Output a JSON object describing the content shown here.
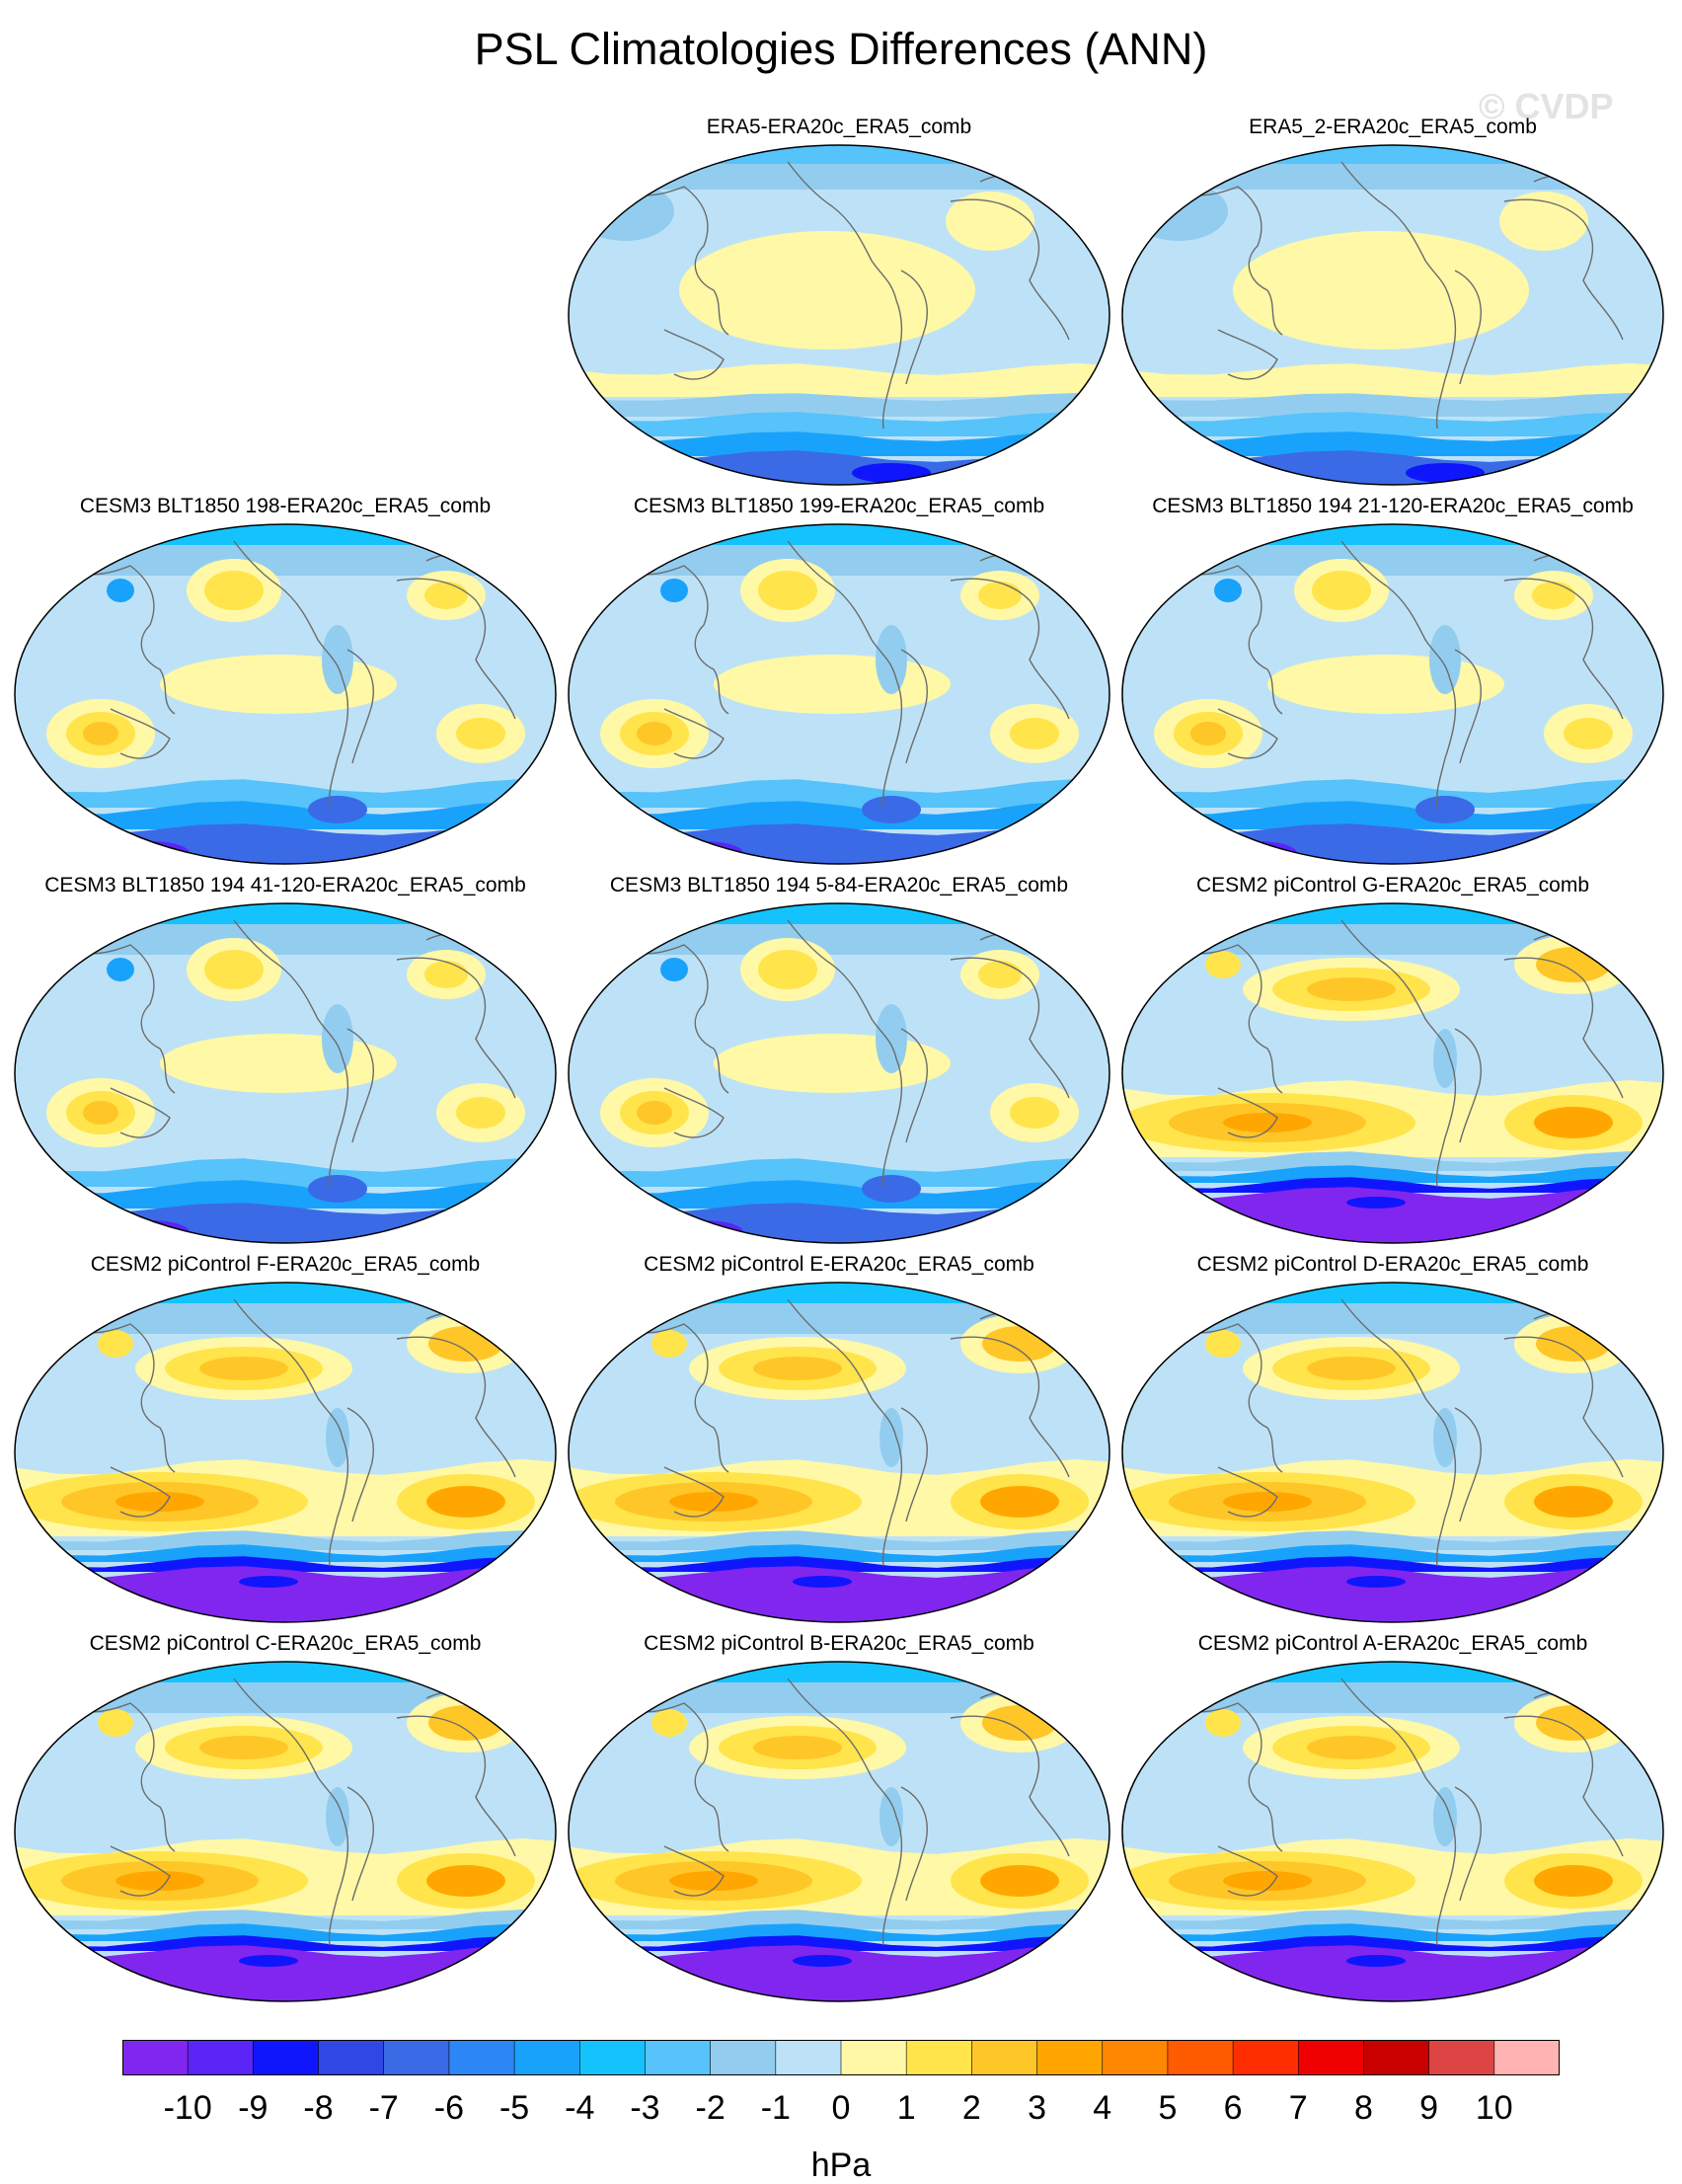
{
  "title": "PSL Climatologies Differences (ANN)",
  "watermark": "© CVDP",
  "units": "hPa",
  "colorbar": {
    "labels": [
      "-10",
      "-9",
      "-8",
      "-7",
      "-6",
      "-5",
      "-4",
      "-3",
      "-2",
      "-1",
      "0",
      "1",
      "2",
      "3",
      "4",
      "5",
      "6",
      "7",
      "8",
      "9",
      "10"
    ],
    "colors": [
      "#8126ef",
      "#5a25f6",
      "#1016fb",
      "#3046e5",
      "#3b6ae6",
      "#2c86f5",
      "#19a2fb",
      "#14c3fd",
      "#56c3fa",
      "#92cdf0",
      "#bde2f7",
      "#fff8a6",
      "#ffe44b",
      "#ffc628",
      "#ffa700",
      "#ff8600",
      "#ff5b00",
      "#ff2e00",
      "#ef0000",
      "#c90000",
      "#dd4545",
      "#ffb3b3"
    ]
  },
  "panels": [
    {
      "title": "ERA5-ERA20c_ERA5_comb",
      "type": "obs"
    },
    {
      "title": "ERA5_2-ERA20c_ERA5_comb",
      "type": "obs"
    },
    {
      "title": "CESM3 BLT1850 198-ERA20c_ERA5_comb",
      "type": "cesm3"
    },
    {
      "title": "CESM3 BLT1850 199-ERA20c_ERA5_comb",
      "type": "cesm3"
    },
    {
      "title": "CESM3 BLT1850 194 21-120-ERA20c_ERA5_comb",
      "type": "cesm3"
    },
    {
      "title": "CESM3 BLT1850 194 41-120-ERA20c_ERA5_comb",
      "type": "cesm3"
    },
    {
      "title": "CESM3 BLT1850 194 5-84-ERA20c_ERA5_comb",
      "type": "cesm3"
    },
    {
      "title": "CESM2 piControl G-ERA20c_ERA5_comb",
      "type": "cesm2"
    },
    {
      "title": "CESM2 piControl F-ERA20c_ERA5_comb",
      "type": "cesm2"
    },
    {
      "title": "CESM2 piControl E-ERA20c_ERA5_comb",
      "type": "cesm2"
    },
    {
      "title": "CESM2 piControl D-ERA20c_ERA5_comb",
      "type": "cesm2"
    },
    {
      "title": "CESM2 piControl C-ERA20c_ERA5_comb",
      "type": "cesm2"
    },
    {
      "title": "CESM2 piControl B-ERA20c_ERA5_comb",
      "type": "cesm2"
    },
    {
      "title": "CESM2 piControl A-ERA20c_ERA5_comb",
      "type": "cesm2"
    }
  ]
}
